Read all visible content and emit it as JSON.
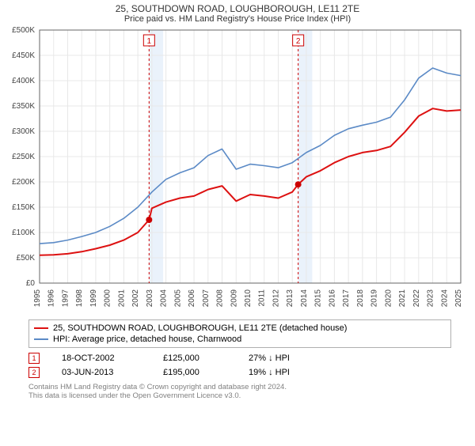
{
  "title_line1": "25, SOUTHDOWN ROAD, LOUGHBOROUGH, LE11 2TE",
  "title_line2": "Price paid vs. HM Land Registry's House Price Index (HPI)",
  "title_fontsize": 12,
  "subtitle_fontsize": 11,
  "chart": {
    "type": "line",
    "background_color": "#ffffff",
    "grid_color": "#e8e8e8",
    "axis_color": "#666666",
    "tick_fontsize": 10,
    "tick_color": "#444444",
    "ytick_format_prefix": "£",
    "ytick_format_suffix": "K",
    "ylim": [
      0,
      500
    ],
    "ytick_step": 50,
    "xlim": [
      1995,
      2025
    ],
    "xtick_step": 1,
    "sale_band_color": "#eaf2fb",
    "sale_band_border_color": "#cc0000",
    "sale_band_dash": "3,3",
    "sale_years": [
      2002.8,
      2013.42
    ],
    "marker_label_box_border": "#cc0000",
    "marker_label_box_text": "#cc0000",
    "marker_dot_color": "#cc0000",
    "marker_dot_radius": 4,
    "series": [
      {
        "name": "price-paid",
        "color": "#dd1111",
        "width": 2,
        "x": [
          1995,
          1996,
          1997,
          1998,
          1999,
          2000,
          2001,
          2002,
          2002.8,
          2003,
          2004,
          2005,
          2006,
          2007,
          2008,
          2009,
          2010,
          2011,
          2012,
          2013,
          2013.42,
          2014,
          2015,
          2016,
          2017,
          2018,
          2019,
          2020,
          2021,
          2022,
          2023,
          2024,
          2025
        ],
        "y": [
          55,
          56,
          58,
          62,
          68,
          75,
          85,
          100,
          125,
          148,
          160,
          168,
          172,
          185,
          192,
          162,
          175,
          172,
          168,
          180,
          195,
          210,
          222,
          238,
          250,
          258,
          262,
          270,
          298,
          330,
          345,
          340,
          342
        ]
      },
      {
        "name": "hpi",
        "color": "#5b8ac6",
        "width": 1.6,
        "x": [
          1995,
          1996,
          1997,
          1998,
          1999,
          2000,
          2001,
          2002,
          2003,
          2004,
          2005,
          2006,
          2007,
          2008,
          2009,
          2010,
          2011,
          2012,
          2013,
          2014,
          2015,
          2016,
          2017,
          2018,
          2019,
          2020,
          2021,
          2022,
          2023,
          2024,
          2025
        ],
        "y": [
          78,
          80,
          85,
          92,
          100,
          112,
          128,
          150,
          180,
          205,
          218,
          228,
          252,
          265,
          225,
          235,
          232,
          228,
          238,
          258,
          272,
          292,
          305,
          312,
          318,
          328,
          362,
          405,
          425,
          415,
          410
        ]
      }
    ]
  },
  "legend": [
    {
      "color": "#dd1111",
      "label": "25, SOUTHDOWN ROAD, LOUGHBOROUGH, LE11 2TE (detached house)"
    },
    {
      "color": "#5b8ac6",
      "label": "HPI: Average price, detached house, Charnwood"
    }
  ],
  "sales_rows": [
    {
      "marker": "1",
      "date": "18-OCT-2002",
      "price": "£125,000",
      "delta": "27% ↓ HPI"
    },
    {
      "marker": "2",
      "date": "03-JUN-2013",
      "price": "£195,000",
      "delta": "19% ↓ HPI"
    }
  ],
  "footer_line1": "Contains HM Land Registry data © Crown copyright and database right 2024.",
  "footer_line2": "This data is licensed under the Open Government Licence v3.0."
}
